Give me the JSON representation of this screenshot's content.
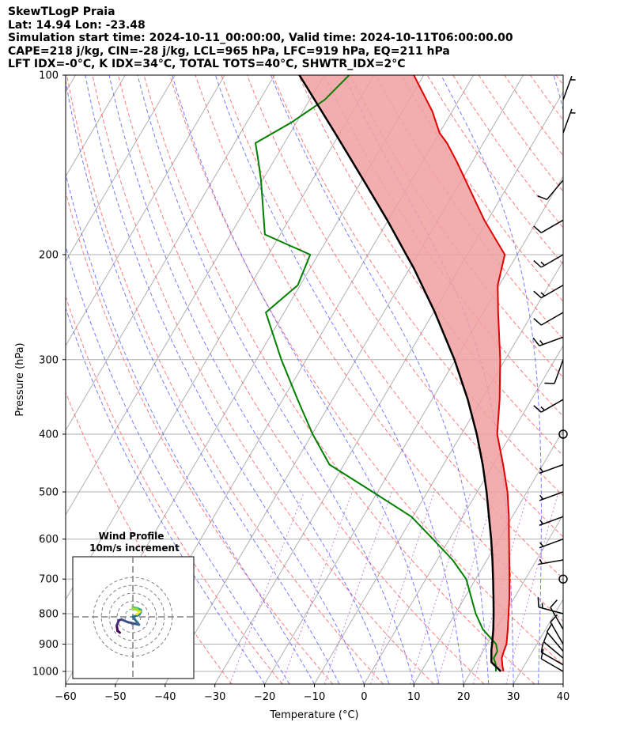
{
  "header": {
    "line1": "SkewTLogP Praia",
    "line2": "Lat: 14.94   Lon: -23.48",
    "line3": "Simulation start time: 2024-10-11_00:00:00, Valid time: 2024-10-11T06:00:00.00",
    "line4": "CAPE=218 j/kg, CIN=-28 j/kg, LCL=965 hPa, LFC=919 hPa, EQ=211 hPa",
    "line5": "LFT IDX=-0°C, K IDX=34°C, TOTAL TOTS=40°C, SHWTR_IDX=2°C"
  },
  "colors": {
    "temperature": "#e00000",
    "dewpoint": "#008000",
    "parcel": "#000000",
    "dry_adiabat": "#ff5a5a",
    "moist_adiabat": "#5a5aff",
    "isotherm": "#b0b0b0",
    "mixing_ratio": "#9933cc",
    "cape_fill": "#8ab6d8",
    "cin_fill": "#f0a0a0"
  },
  "chart_data": {
    "type": "line",
    "title": "SkewTLogP Praia",
    "xlabel": "Temperature (°C)",
    "ylabel": "Pressure (hPa)",
    "xlim": [
      -60,
      40
    ],
    "ylim": [
      1050,
      100
    ],
    "y_scale": "log",
    "x_ticks": [
      "−60",
      "−50",
      "−40",
      "−30",
      "−20",
      "−10",
      "0",
      "10",
      "20",
      "30",
      "40"
    ],
    "y_ticks": [
      "100",
      "200",
      "300",
      "400",
      "500",
      "600",
      "700",
      "800",
      "900",
      "1000"
    ],
    "grid": true,
    "series": [
      {
        "key": "temperature",
        "pressure": [
          1000,
          975,
          950,
          925,
          900,
          850,
          800,
          750,
          700,
          650,
          600,
          550,
          500,
          450,
          400,
          350,
          300,
          250,
          225,
          200,
          175,
          150,
          140,
          130,
          125,
          115,
          100
        ],
        "values": [
          26.5,
          25.5,
          24.6,
          24.2,
          23.9,
          22.4,
          20.7,
          18.9,
          16.8,
          14.5,
          12.0,
          9.3,
          6.1,
          2.0,
          -2.8,
          -6.4,
          -11.0,
          -17.0,
          -20.3,
          -22.5,
          -30.7,
          -39.2,
          -43.0,
          -47.3,
          -50.0,
          -54.0,
          -62.0
        ]
      },
      {
        "key": "dewpoint",
        "pressure": [
          1000,
          975,
          950,
          925,
          900,
          850,
          800,
          750,
          700,
          650,
          600,
          550,
          500,
          450,
          400,
          350,
          300,
          250,
          225,
          200,
          185,
          150,
          140,
          130,
          120,
          110,
          100
        ],
        "values": [
          25.0,
          24.2,
          23.0,
          22.9,
          21.8,
          17.4,
          14.1,
          11.2,
          8.1,
          3.1,
          -3.3,
          -10.3,
          -21.0,
          -32.9,
          -39.9,
          -47.0,
          -55.0,
          -63.7,
          -60.5,
          -61.6,
          -73.1,
          -80.3,
          -82.9,
          -85.8,
          -81.0,
          -77.0,
          -75.0
        ]
      },
      {
        "key": "parcel",
        "pressure": [
          1000,
          965,
          919,
          900,
          850,
          800,
          750,
          700,
          650,
          600,
          550,
          500,
          450,
          400,
          350,
          300,
          250,
          211,
          200,
          175,
          150,
          125,
          100
        ],
        "values": [
          26.0,
          23.0,
          21.5,
          21.0,
          19.5,
          17.7,
          15.7,
          13.5,
          11.1,
          8.4,
          5.3,
          1.9,
          -2.1,
          -6.9,
          -12.8,
          -20.2,
          -29.7,
          -39.1,
          -42.3,
          -50.2,
          -59.7,
          -71.0,
          -85.0
        ]
      }
    ],
    "parcel": {
      "cape_jkg": 218,
      "cin_jkg": -28,
      "lcl_hpa": 965,
      "lfc_hpa": 919,
      "eq_hpa": 211
    },
    "indices": {
      "lifted_index_c": 0,
      "k_index_c": 34,
      "total_totals_c": 40,
      "showalter_index_c": 2
    },
    "wind_barbs": {
      "pressure": [
        1000,
        975,
        950,
        925,
        900,
        850,
        800,
        700,
        650,
        600,
        550,
        500,
        450,
        400,
        350,
        300,
        275,
        250,
        225,
        200,
        175,
        150,
        125,
        110
      ],
      "speed_kt": [
        10,
        10,
        10,
        10,
        10,
        10,
        15,
        0,
        5,
        5,
        5,
        5,
        5,
        0,
        15,
        10,
        15,
        10,
        15,
        15,
        10,
        10,
        5,
        5
      ],
      "direction_deg": [
        300,
        300,
        310,
        320,
        330,
        330,
        285,
        0,
        260,
        250,
        250,
        250,
        250,
        0,
        240,
        200,
        250,
        240,
        240,
        240,
        240,
        220,
        20,
        20
      ]
    },
    "hodograph": {
      "title": "Wind Profile",
      "subtitle": "10m/s increment",
      "ring_increment_ms": 10,
      "u_ms": [
        -3.0,
        -3.5,
        -3.7,
        -3.2,
        -2.6,
        -1.2,
        1.4,
        0.0,
        1.3,
        1.8,
        1.8,
        0.9,
        0.0,
        0.0,
        1.0,
        1.6,
        0.9
      ],
      "v_ms": [
        -1.8,
        -1.6,
        -1.0,
        -0.4,
        -0.3,
        -0.6,
        -0.9,
        0.0,
        0.2,
        0.5,
        0.8,
        1.0,
        1.1,
        0.9,
        0.8,
        0.6,
        0.3
      ]
    }
  }
}
